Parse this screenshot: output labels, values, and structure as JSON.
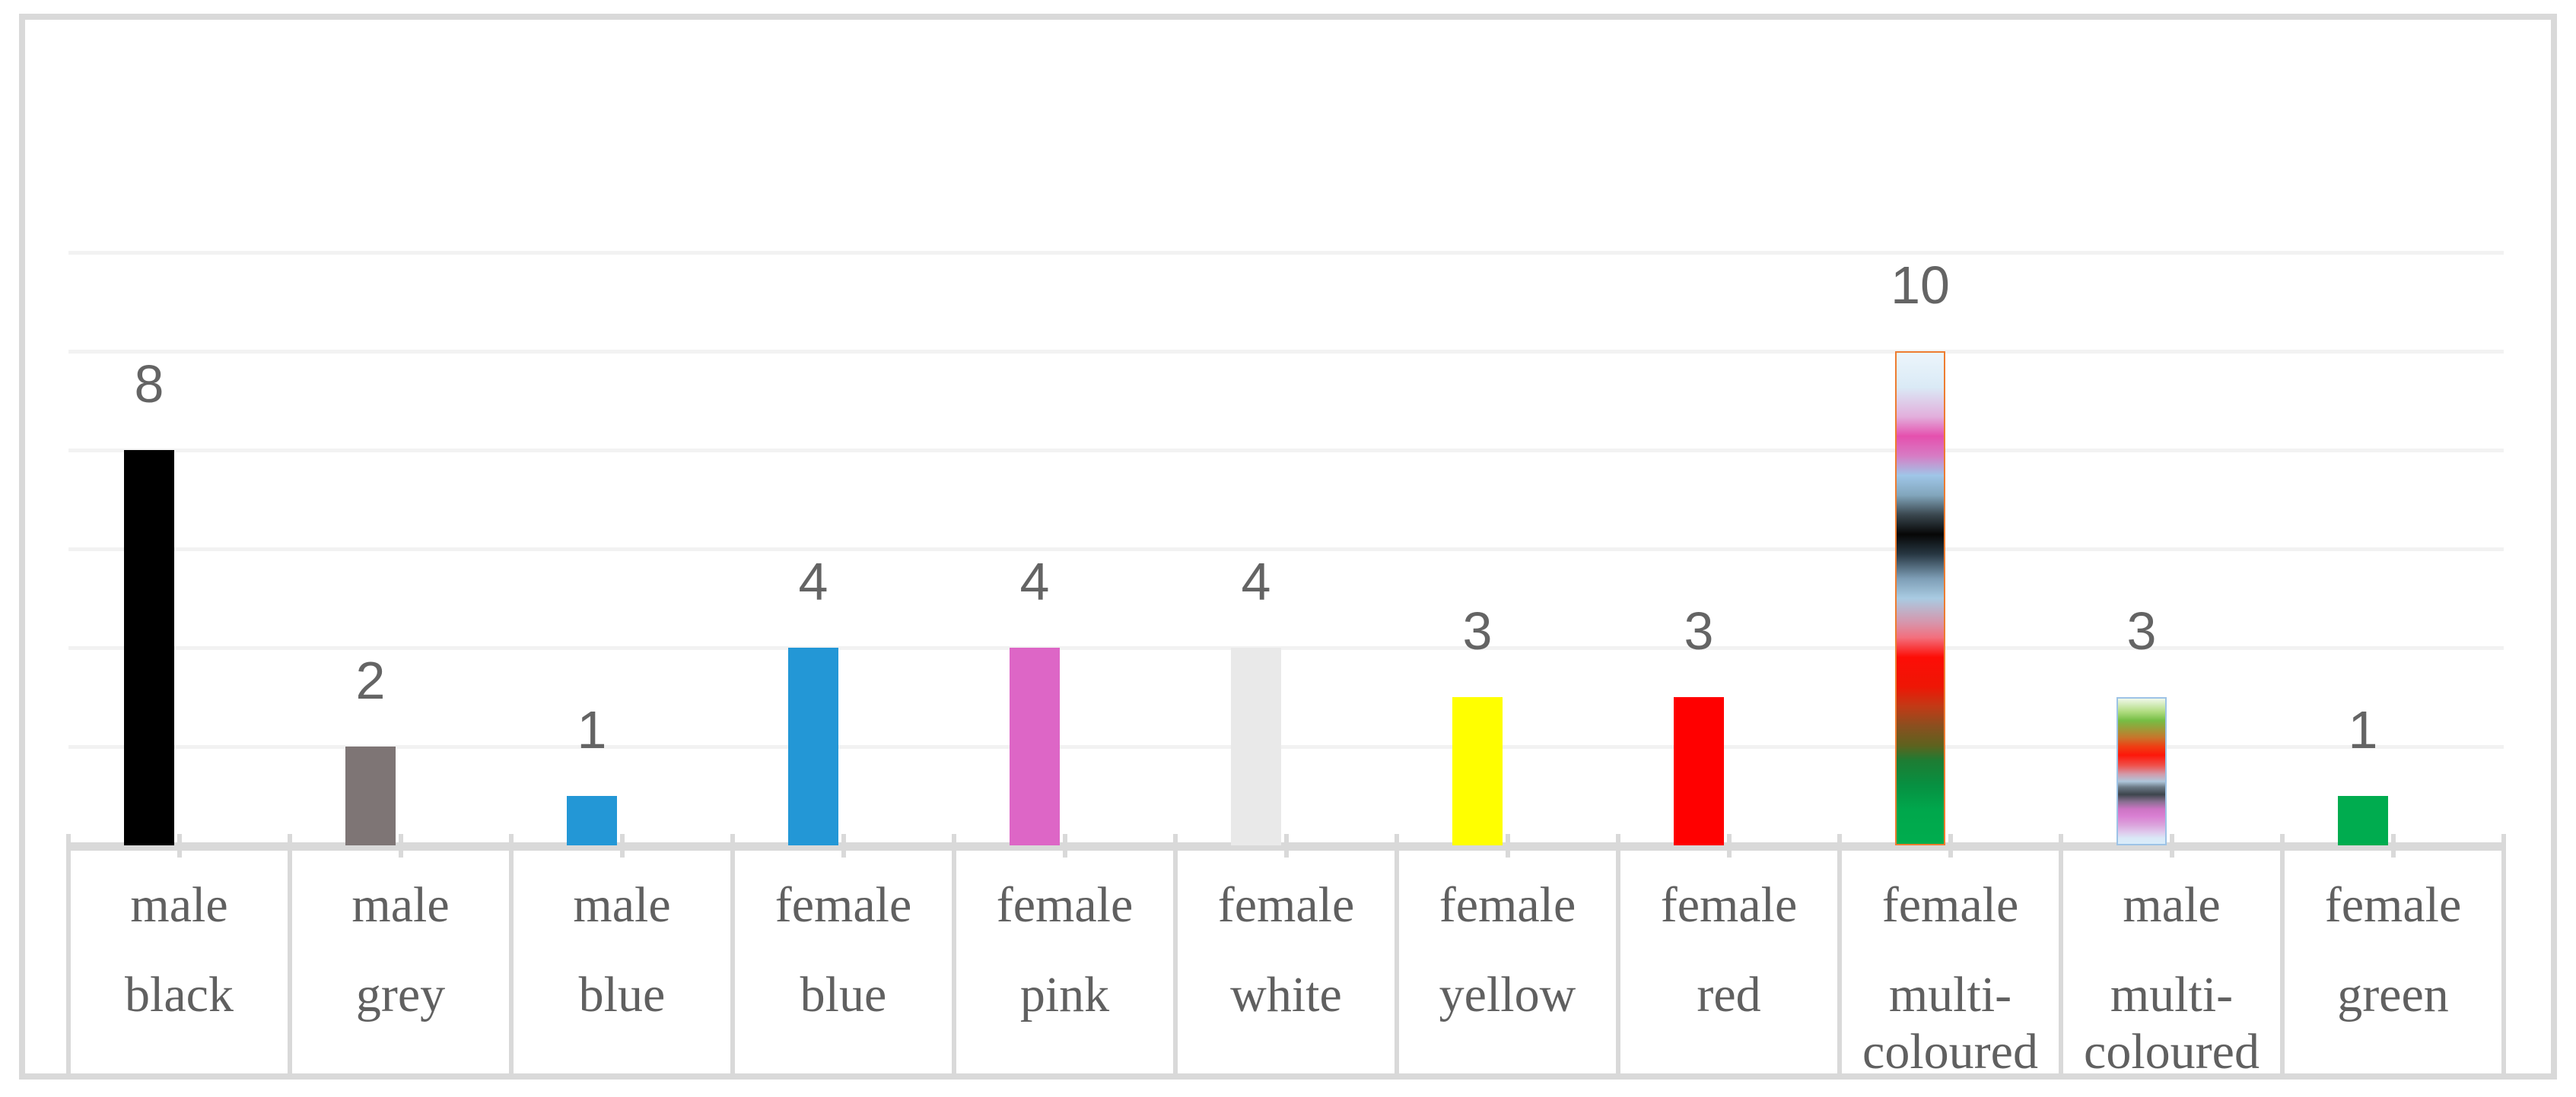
{
  "figure": {
    "background": "#ffffff",
    "outer_border_color": "#D9D9D9",
    "gridline_color": "#F2F2F2",
    "axis_line_color": "#D9D9D9",
    "value_label_color": "#646464",
    "category_label_color": "#606060"
  },
  "chart_data": {
    "type": "bar",
    "title": "",
    "xlabel": "",
    "ylabel": "",
    "ylim": [
      0,
      12
    ],
    "gridline_interval": 2,
    "gridline_values": [
      2,
      4,
      6,
      8,
      10,
      12
    ],
    "grid": "horizontal only",
    "legend_position": "none",
    "y_axis_tick_labels": "none (values shown as data labels above bars)",
    "categories": [
      "male black",
      "male grey",
      "male blue",
      "female blue",
      "female pink",
      "female white",
      "female yellow",
      "female red",
      "female multi-coloured",
      "male multi-coloured",
      "female green"
    ],
    "category_label_lines": [
      [
        "male",
        "black"
      ],
      [
        "male",
        "grey"
      ],
      [
        "male",
        "blue"
      ],
      [
        "female",
        "blue"
      ],
      [
        "female",
        "pink"
      ],
      [
        "female",
        "white"
      ],
      [
        "female",
        "yellow"
      ],
      [
        "female",
        "red"
      ],
      [
        "female",
        "multi-",
        "coloured"
      ],
      [
        "male",
        "multi-",
        "coloured"
      ],
      [
        "female",
        "green"
      ]
    ],
    "values": [
      8,
      2,
      1,
      4,
      4,
      4,
      3,
      3,
      10,
      3,
      1
    ],
    "data_labels": [
      "8",
      "2",
      "1",
      "4",
      "4",
      "4",
      "3",
      "3",
      "10",
      "3",
      "1"
    ],
    "bar_fills": [
      {
        "type": "solid",
        "color": "#000000"
      },
      {
        "type": "solid",
        "color": "#7E7575"
      },
      {
        "type": "solid",
        "color": "#2397D6"
      },
      {
        "type": "solid",
        "color": "#2397D6"
      },
      {
        "type": "solid",
        "color": "#DD66C6"
      },
      {
        "type": "solid",
        "color": "#E9E9E9"
      },
      {
        "type": "solid",
        "color": "#FFFF00"
      },
      {
        "type": "solid",
        "color": "#FF0000"
      },
      {
        "type": "gradient",
        "border": "#ED7D31",
        "stops": [
          [
            0,
            "#ECF5FB"
          ],
          [
            7,
            "#DAEAF6"
          ],
          [
            13,
            "#E2AFDC"
          ],
          [
            17,
            "#E550AE"
          ],
          [
            21,
            "#D77CC4"
          ],
          [
            25,
            "#9FC6E8"
          ],
          [
            29,
            "#82A6BC"
          ],
          [
            33,
            "#3A474F"
          ],
          [
            37,
            "#060606"
          ],
          [
            41,
            "#273742"
          ],
          [
            46,
            "#7E9EB6"
          ],
          [
            50,
            "#A9CBE2"
          ],
          [
            55,
            "#D795AB"
          ],
          [
            58,
            "#F36F7D"
          ],
          [
            62,
            "#FD0D06"
          ],
          [
            68,
            "#EE1605"
          ],
          [
            72,
            "#C23A16"
          ],
          [
            76,
            "#8A4F1F"
          ],
          [
            80,
            "#5E621E"
          ],
          [
            83,
            "#1E7C33"
          ],
          [
            88,
            "#079041"
          ],
          [
            93,
            "#00A74C"
          ],
          [
            100,
            "#00AD4E"
          ]
        ]
      },
      {
        "type": "gradient",
        "border": "#9DC3E6",
        "stops": [
          [
            0,
            "#F0F8EA"
          ],
          [
            9,
            "#B0DC80"
          ],
          [
            15,
            "#76BE45"
          ],
          [
            21,
            "#9E9A38"
          ],
          [
            27,
            "#C9742B"
          ],
          [
            33,
            "#EF3E13"
          ],
          [
            39,
            "#FD170A"
          ],
          [
            46,
            "#EF514B"
          ],
          [
            52,
            "#D29AAA"
          ],
          [
            57,
            "#AFC7DB"
          ],
          [
            61,
            "#6B7985"
          ],
          [
            66,
            "#3D454D"
          ],
          [
            71,
            "#8A6F92"
          ],
          [
            76,
            "#CC74C4"
          ],
          [
            81,
            "#D980D2"
          ],
          [
            87,
            "#DBA4DC"
          ],
          [
            92,
            "#DFC9EC"
          ],
          [
            96,
            "#DAE7F6"
          ],
          [
            100,
            "#D9EDFA"
          ]
        ]
      },
      {
        "type": "solid",
        "color": "#00AC4F"
      }
    ]
  }
}
